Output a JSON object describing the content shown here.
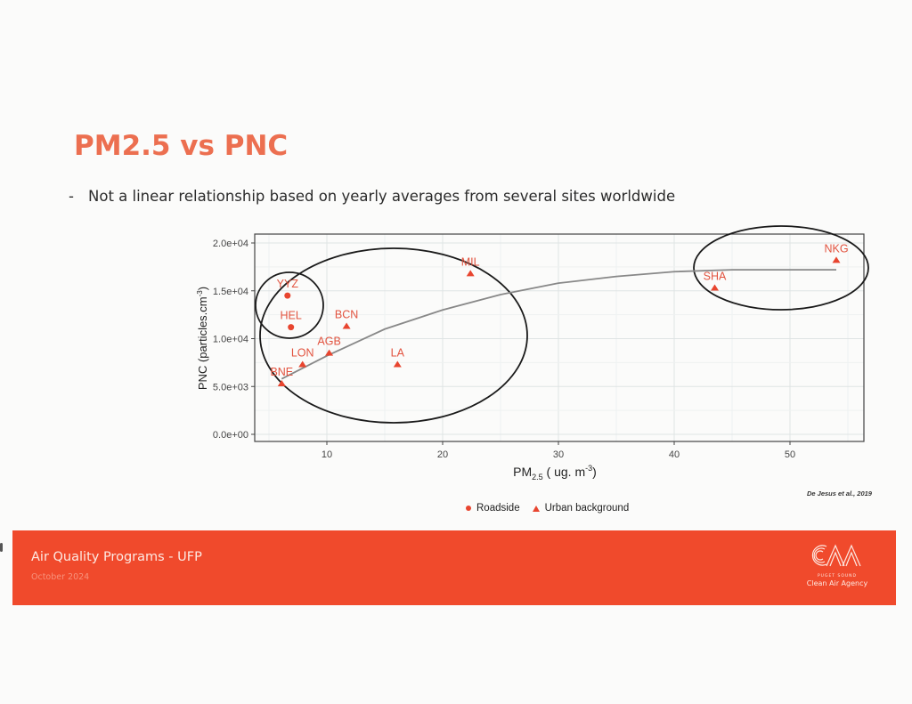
{
  "slide": {
    "title": "PM2.5 vs PNC",
    "bullet_dash": "-",
    "bullet_text": "Not a linear relationship based on yearly averages from several sites worldwide",
    "source": "De Jesus et al., 2019"
  },
  "footer": {
    "title": "Air Quality Programs - UFP",
    "date": "October 2024",
    "logo_text": "CAA",
    "logo_small": "PUGET SOUND",
    "logo_name": "Clean Air Agency"
  },
  "colors": {
    "accent": "#ec6f50",
    "footer_bg": "#f04a2c",
    "point": "#e8452f"
  },
  "legend": {
    "roadside": "Roadside",
    "urban": "Urban background"
  },
  "chart_data": {
    "type": "scatter",
    "title": "",
    "xlabel": "PM2.5 ( ug. m-3)",
    "ylabel": "PNC (particles.cm-3)",
    "xlim": [
      3.7,
      56
    ],
    "ylim": [
      -700,
      20800
    ],
    "x_ticks": [
      10,
      20,
      30,
      40,
      50
    ],
    "y_ticks": [
      "0.0e+00",
      "5.0e+03",
      "1.0e+04",
      "1.5e+04",
      "2.0e+04"
    ],
    "grid": true,
    "legend_position": "bottom",
    "series": [
      {
        "name": "Roadside",
        "marker": "circle",
        "points": [
          {
            "label": "YYZ",
            "x": 6.6,
            "y": 14500
          },
          {
            "label": "HEL",
            "x": 6.9,
            "y": 11200
          }
        ]
      },
      {
        "name": "Urban background",
        "marker": "triangle",
        "points": [
          {
            "label": "BNE",
            "x": 6.1,
            "y": 5300
          },
          {
            "label": "LON",
            "x": 7.9,
            "y": 7300
          },
          {
            "label": "AGB",
            "x": 10.2,
            "y": 8500
          },
          {
            "label": "BCN",
            "x": 11.7,
            "y": 11300
          },
          {
            "label": "LA",
            "x": 16.1,
            "y": 7300
          },
          {
            "label": "MIL",
            "x": 22.4,
            "y": 16800
          },
          {
            "label": "SHA",
            "x": 43.5,
            "y": 15300
          },
          {
            "label": "NKG",
            "x": 54.0,
            "y": 18200
          }
        ]
      }
    ],
    "fit_curve": {
      "description": "saturating fit line",
      "points": [
        [
          6.1,
          5800
        ],
        [
          10,
          8200
        ],
        [
          15,
          11000
        ],
        [
          20,
          13000
        ],
        [
          25,
          14600
        ],
        [
          30,
          15800
        ],
        [
          35,
          16500
        ],
        [
          40,
          17000
        ],
        [
          45,
          17200
        ],
        [
          54,
          17200
        ]
      ]
    },
    "annotations": [
      {
        "type": "ellipse",
        "note": "circle around YYZ and HEL"
      },
      {
        "type": "ellipse",
        "note": "large ellipse around low-PM2.5 sites"
      },
      {
        "type": "ellipse",
        "note": "ellipse around SHA and NKG"
      }
    ]
  }
}
